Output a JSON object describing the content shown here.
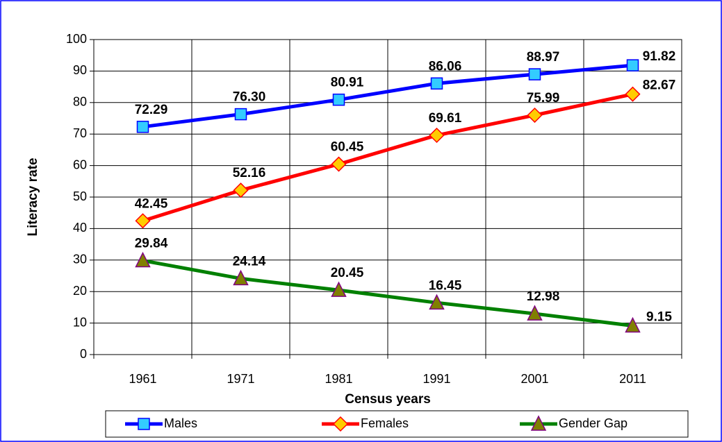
{
  "chart_data": {
    "type": "line",
    "x_label": "Census years",
    "y_label": "Literacy rate",
    "categories": [
      "1961",
      "1971",
      "1981",
      "1991",
      "2001",
      "2011"
    ],
    "series": [
      {
        "name": "Males",
        "color": "#0000ff",
        "marker": "square",
        "marker_color": "#33ccff",
        "values": [
          72.29,
          76.3,
          80.91,
          86.06,
          88.97,
          91.82
        ],
        "value_labels": [
          "72.29",
          "76.30",
          "80.91",
          "86.06",
          "88.97",
          "91.82"
        ]
      },
      {
        "name": "Females",
        "color": "#ff0000",
        "marker": "diamond",
        "marker_color": "#ffcc00",
        "values": [
          42.45,
          52.16,
          60.45,
          69.61,
          75.99,
          82.67
        ],
        "value_labels": [
          "42.45",
          "52.16",
          "60.45",
          "69.61",
          "75.99",
          "82.67"
        ]
      },
      {
        "name": "Gender Gap",
        "color": "#008000",
        "marker": "triangle",
        "marker_color": "#808000",
        "values": [
          29.84,
          24.14,
          20.45,
          16.45,
          12.98,
          9.15
        ],
        "value_labels": [
          "29.84",
          "24.14",
          "20.45",
          "16.45",
          "12.98",
          "9.15"
        ]
      }
    ],
    "ylim": [
      0,
      100
    ],
    "yticks": [
      0,
      10,
      20,
      30,
      40,
      50,
      60,
      70,
      80,
      90,
      100
    ],
    "grid": true,
    "legend": "bottom"
  }
}
